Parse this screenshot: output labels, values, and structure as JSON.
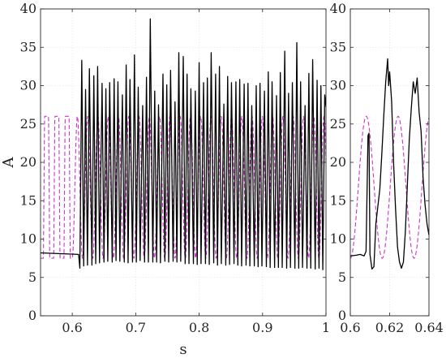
{
  "chart_data": [
    {
      "type": "line",
      "xlabel": "s",
      "ylabel": "A",
      "xlim": [
        0.55,
        1.0
      ],
      "ylim": [
        0,
        40
      ],
      "xticks": [
        0.6,
        0.7,
        0.8,
        0.9,
        1
      ],
      "xtick_labels": [
        "0.6",
        "0.7",
        "0.8",
        "0.9",
        "1"
      ],
      "yticks": [
        0,
        5,
        10,
        15,
        20,
        25,
        30,
        35,
        40
      ],
      "ytick_labels": [
        "0",
        "5",
        "10",
        "15",
        "20",
        "25",
        "30",
        "35",
        "40"
      ],
      "grid": true,
      "legend": false,
      "series": [
        {
          "color": "#000000",
          "style": "solid",
          "x": [
            0.55,
            0.61,
            0.612,
            0.615,
            0.618,
            0.621,
            0.624,
            0.627,
            0.631,
            0.634,
            0.637,
            0.64,
            0.643,
            0.647,
            0.65,
            0.653,
            0.656,
            0.659,
            0.663,
            0.666,
            0.669,
            0.672,
            0.675,
            0.679,
            0.682,
            0.685,
            0.688,
            0.691,
            0.695,
            0.698,
            0.701,
            0.704,
            0.707,
            0.711,
            0.714,
            0.717,
            0.72,
            0.723,
            0.727,
            0.73,
            0.733,
            0.736,
            0.739,
            0.743,
            0.746,
            0.749,
            0.752,
            0.755,
            0.759,
            0.762,
            0.765,
            0.768,
            0.771,
            0.775,
            0.778,
            0.781,
            0.784,
            0.787,
            0.791,
            0.794,
            0.797,
            0.8,
            0.803,
            0.807,
            0.81,
            0.813,
            0.816,
            0.819,
            0.823,
            0.826,
            0.829,
            0.832,
            0.835,
            0.839,
            0.842,
            0.845,
            0.848,
            0.851,
            0.855,
            0.858,
            0.861,
            0.864,
            0.867,
            0.871,
            0.874,
            0.877,
            0.88,
            0.883,
            0.887,
            0.89,
            0.893,
            0.896,
            0.899,
            0.903,
            0.906,
            0.909,
            0.912,
            0.915,
            0.919,
            0.922,
            0.925,
            0.928,
            0.931,
            0.935,
            0.938,
            0.941,
            0.944,
            0.947,
            0.951,
            0.954,
            0.957,
            0.96,
            0.963,
            0.967,
            0.97,
            0.973,
            0.976,
            0.979,
            0.983,
            0.986,
            0.989,
            0.992,
            0.995,
            0.998,
            1.0
          ],
          "y": [
            8.2,
            8.0,
            6.2,
            33.3,
            6.5,
            29.5,
            6.6,
            32.2,
            6.6,
            31.3,
            6.8,
            32.5,
            6.9,
            30.3,
            7.0,
            29.6,
            7.1,
            30.4,
            7.0,
            30.9,
            7.2,
            30.5,
            7.1,
            28.8,
            7.0,
            32.7,
            6.9,
            30.8,
            7.0,
            34.0,
            7.0,
            29.8,
            7.2,
            27.4,
            7.0,
            31.1,
            7.0,
            38.7,
            7.0,
            29.3,
            7.0,
            27.5,
            6.9,
            31.5,
            7.1,
            30.1,
            7.0,
            32.0,
            7.1,
            27.9,
            7.0,
            34.3,
            7.1,
            33.8,
            6.8,
            31.5,
            6.8,
            29.6,
            6.8,
            29.3,
            6.7,
            33.0,
            6.8,
            30.4,
            6.8,
            31.0,
            6.7,
            34.3,
            6.9,
            31.5,
            6.6,
            32.5,
            6.8,
            27.6,
            6.6,
            31.2,
            6.7,
            30.4,
            6.8,
            30.5,
            6.6,
            30.8,
            6.5,
            30.2,
            6.6,
            30.3,
            6.5,
            27.4,
            6.5,
            30.0,
            6.4,
            30.3,
            6.5,
            29.3,
            6.4,
            31.8,
            6.3,
            30.5,
            6.3,
            28.7,
            6.3,
            31.7,
            6.3,
            34.5,
            6.2,
            29.0,
            6.3,
            30.4,
            6.2,
            35.6,
            6.2,
            30.5,
            6.3,
            27.4,
            6.2,
            31.6,
            6.2,
            33.4,
            6.1,
            30.7,
            6.2,
            30.0,
            6.0,
            28.8,
            27.2
          ]
        },
        {
          "color": "#cc33cc",
          "style": "dashed",
          "wave": {
            "from": 0.55,
            "to": 1.0,
            "period": 0.0162,
            "min": 7.5,
            "max": 26.0,
            "phase": 0.0,
            "regime_change": 0.6,
            "early_duty_flat": 0.62
          }
        }
      ]
    },
    {
      "type": "line",
      "xlabel": "",
      "ylabel": "",
      "xlim": [
        0.6,
        0.64
      ],
      "ylim": [
        0,
        40
      ],
      "xticks": [
        0.6,
        0.62,
        0.64
      ],
      "xtick_labels": [
        "0.6",
        "0.62",
        "0.64"
      ],
      "yticks": [
        0,
        5,
        10,
        15,
        20,
        25,
        30,
        35,
        40
      ],
      "ytick_labels": [
        "0",
        "5",
        "10",
        "15",
        "20",
        "25",
        "30",
        "35",
        "40"
      ],
      "grid": true,
      "legend": false,
      "series": [
        {
          "color": "#000000",
          "style": "solid",
          "x": [
            0.6,
            0.603,
            0.605,
            0.607,
            0.608,
            0.609,
            0.6095,
            0.61,
            0.611,
            0.612,
            0.613,
            0.615,
            0.616,
            0.617,
            0.618,
            0.619,
            0.6195,
            0.62,
            0.621,
            0.622,
            0.623,
            0.624,
            0.625,
            0.626,
            0.627,
            0.628,
            0.629,
            0.63,
            0.631,
            0.632,
            0.633,
            0.634,
            0.635,
            0.636,
            0.637,
            0.638,
            0.639,
            0.64
          ],
          "y": [
            7.8,
            7.9,
            8.0,
            7.8,
            8.4,
            23.5,
            23.8,
            8.0,
            6.1,
            6.4,
            12.0,
            16.5,
            21.0,
            26.0,
            30.5,
            33.5,
            30.0,
            31.8,
            28.0,
            20.0,
            14.0,
            9.0,
            7.0,
            6.2,
            7.0,
            11.0,
            17.0,
            23.0,
            27.0,
            30.5,
            29.0,
            31.0,
            26.5,
            24.0,
            18.0,
            14.5,
            12.0,
            10.5
          ]
        },
        {
          "color": "#cc33cc",
          "style": "dashed",
          "wave": {
            "from": 0.6,
            "to": 0.64,
            "period": 0.0162,
            "min": 7.5,
            "max": 26.0,
            "phase": 0.0,
            "regime_change": 0.6,
            "early_duty_flat": 0.62
          }
        }
      ]
    }
  ]
}
